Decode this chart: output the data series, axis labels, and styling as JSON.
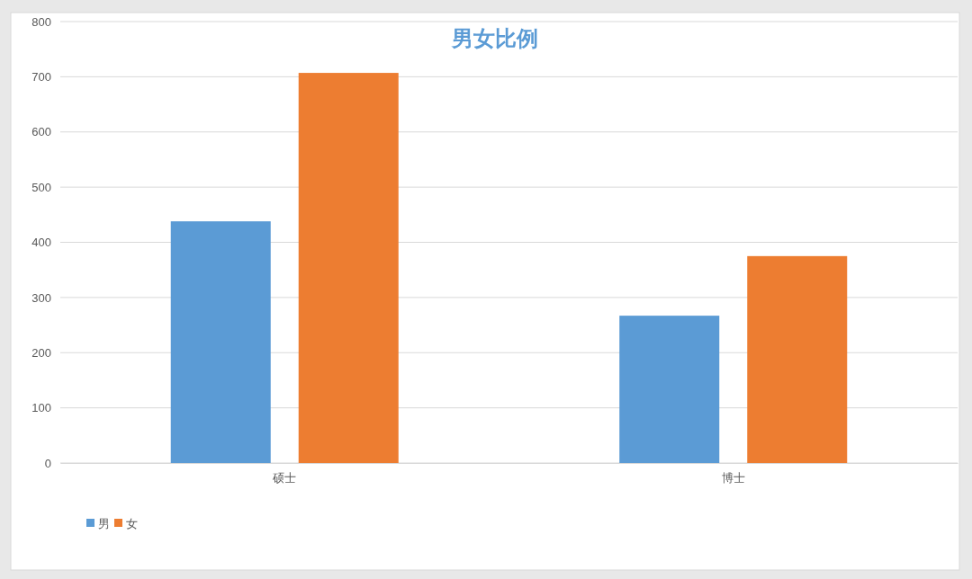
{
  "chart_data": {
    "type": "bar",
    "title": "男女比例",
    "categories": [
      "硕士",
      "博士"
    ],
    "series": [
      {
        "name": "男",
        "color": "#5b9bd5",
        "values": [
          438,
          267
        ]
      },
      {
        "name": "女",
        "color": "#ed7d31",
        "values": [
          707,
          375
        ]
      }
    ],
    "ylim": [
      0,
      800
    ],
    "yticks": [
      0,
      100,
      200,
      300,
      400,
      500,
      600,
      700,
      800
    ],
    "grid": "y",
    "legend": "bottom left"
  }
}
